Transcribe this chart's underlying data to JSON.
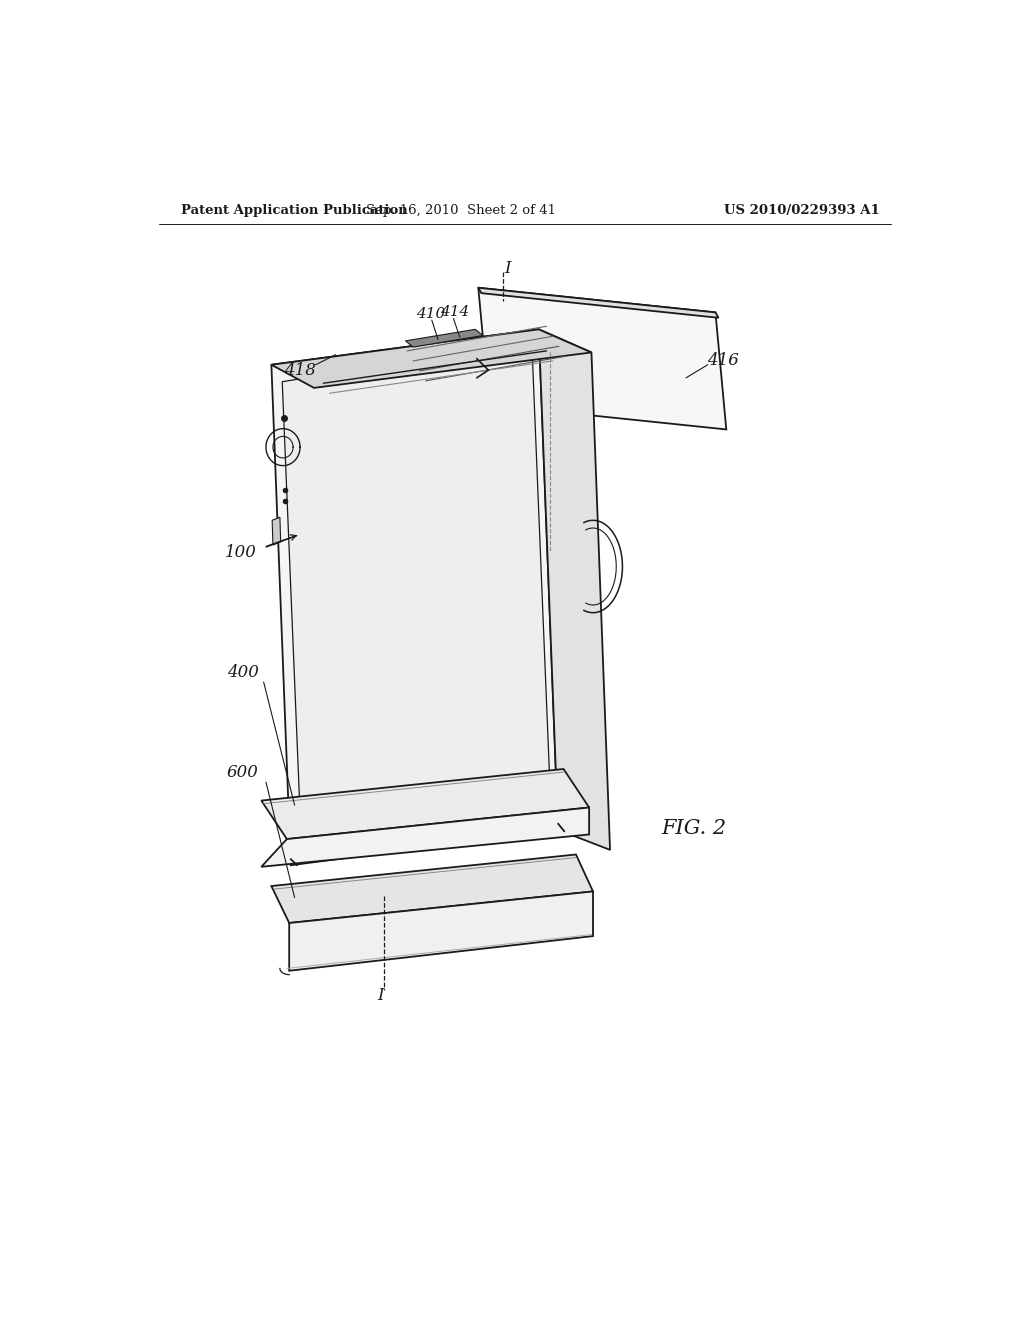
{
  "background_color": "#ffffff",
  "header_left": "Patent Application Publication",
  "header_center": "Sep. 16, 2010  Sheet 2 of 41",
  "header_right": "US 2010/0229393 A1",
  "figure_label": "FIG. 2",
  "line_color": "#1a1a1a",
  "face_color_front": "#f5f5f5",
  "face_color_side": "#e8e8e8",
  "face_color_top": "#dddddd",
  "face_color_sheet": "#f8f8f8"
}
